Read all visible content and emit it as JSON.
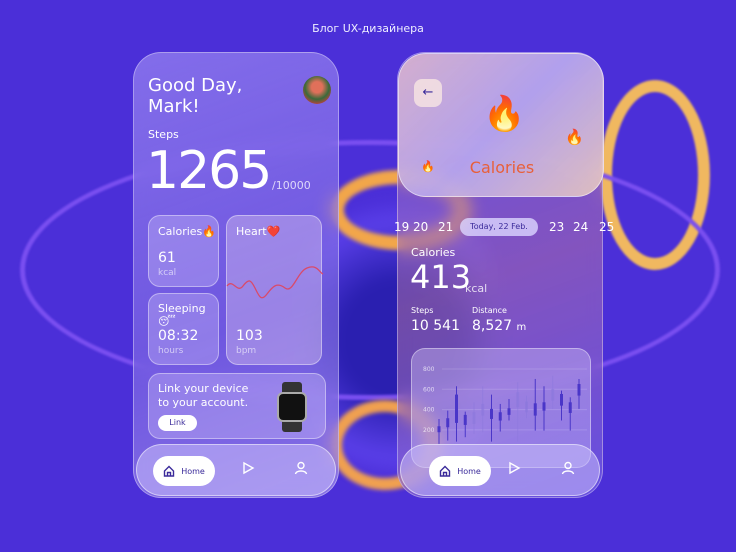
{
  "header": {
    "title": "Блог UX-дизайнера"
  },
  "left": {
    "greeting_line1": "Good Day,",
    "greeting_line2": "Mark!",
    "steps_label": "Steps",
    "steps_value": "1265",
    "steps_goal": "/10000",
    "calories": {
      "label": "Calories🔥",
      "value": "61",
      "unit": "kcal"
    },
    "heart": {
      "label": "Heart❤️",
      "value": "103",
      "unit": "bpm"
    },
    "sleeping": {
      "label": "Sleeping😴",
      "value": "08:32",
      "unit": "hours"
    },
    "link_card": {
      "line1": "Link your device",
      "line2": "to your account.",
      "button": "Link"
    },
    "nav": {
      "home": "Home"
    }
  },
  "right": {
    "header_title": "Calories",
    "dates": [
      "19",
      "20",
      "21",
      "Today, 22 Feb.",
      "23",
      "24",
      "25"
    ],
    "calories_label": "Calories",
    "calories_value": "413",
    "calories_unit": "kcal",
    "steps_label": "Steps",
    "steps_value": "10 541",
    "distance_label": "Distance",
    "distance_value": "8,527",
    "distance_unit": "m",
    "nav": {
      "home": "Home"
    }
  },
  "chart_data": {
    "type": "candlestick",
    "y_ticks": [
      "800",
      "600",
      "400",
      "200"
    ],
    "ylim": [
      0,
      800
    ],
    "candles": [
      {
        "low": 62,
        "high": 308,
        "open": 177,
        "close": 236
      },
      {
        "low": 95,
        "high": 390,
        "open": 226,
        "close": 315
      },
      {
        "low": 85,
        "high": 630,
        "open": 269,
        "close": 548
      },
      {
        "low": 128,
        "high": 380,
        "open": 249,
        "close": 348
      },
      {
        "low": 161,
        "high": 472,
        "open": 259,
        "close": 374
      },
      {
        "low": 177,
        "high": 630,
        "open": 341,
        "close": 456
      },
      {
        "low": 85,
        "high": 548,
        "open": 308,
        "close": 407
      },
      {
        "low": 184,
        "high": 456,
        "open": 292,
        "close": 374
      },
      {
        "low": 292,
        "high": 505,
        "open": 348,
        "close": 413
      },
      {
        "low": 85,
        "high": 669,
        "open": 423,
        "close": 571
      },
      {
        "low": 315,
        "high": 538,
        "open": 374,
        "close": 479
      },
      {
        "low": 193,
        "high": 702,
        "open": 341,
        "close": 462
      },
      {
        "low": 193,
        "high": 630,
        "open": 390,
        "close": 472
      },
      {
        "low": 407,
        "high": 734,
        "open": 489,
        "close": 603
      },
      {
        "low": 292,
        "high": 587,
        "open": 439,
        "close": 554
      },
      {
        "low": 193,
        "high": 521,
        "open": 367,
        "close": 472
      },
      {
        "low": 407,
        "high": 702,
        "open": 538,
        "close": 652
      }
    ]
  },
  "colors": {
    "background": "#4b2fd8",
    "accent": "#3a2a9a",
    "calories_title": "#e8603a",
    "heart_line": "#d94a6a"
  }
}
